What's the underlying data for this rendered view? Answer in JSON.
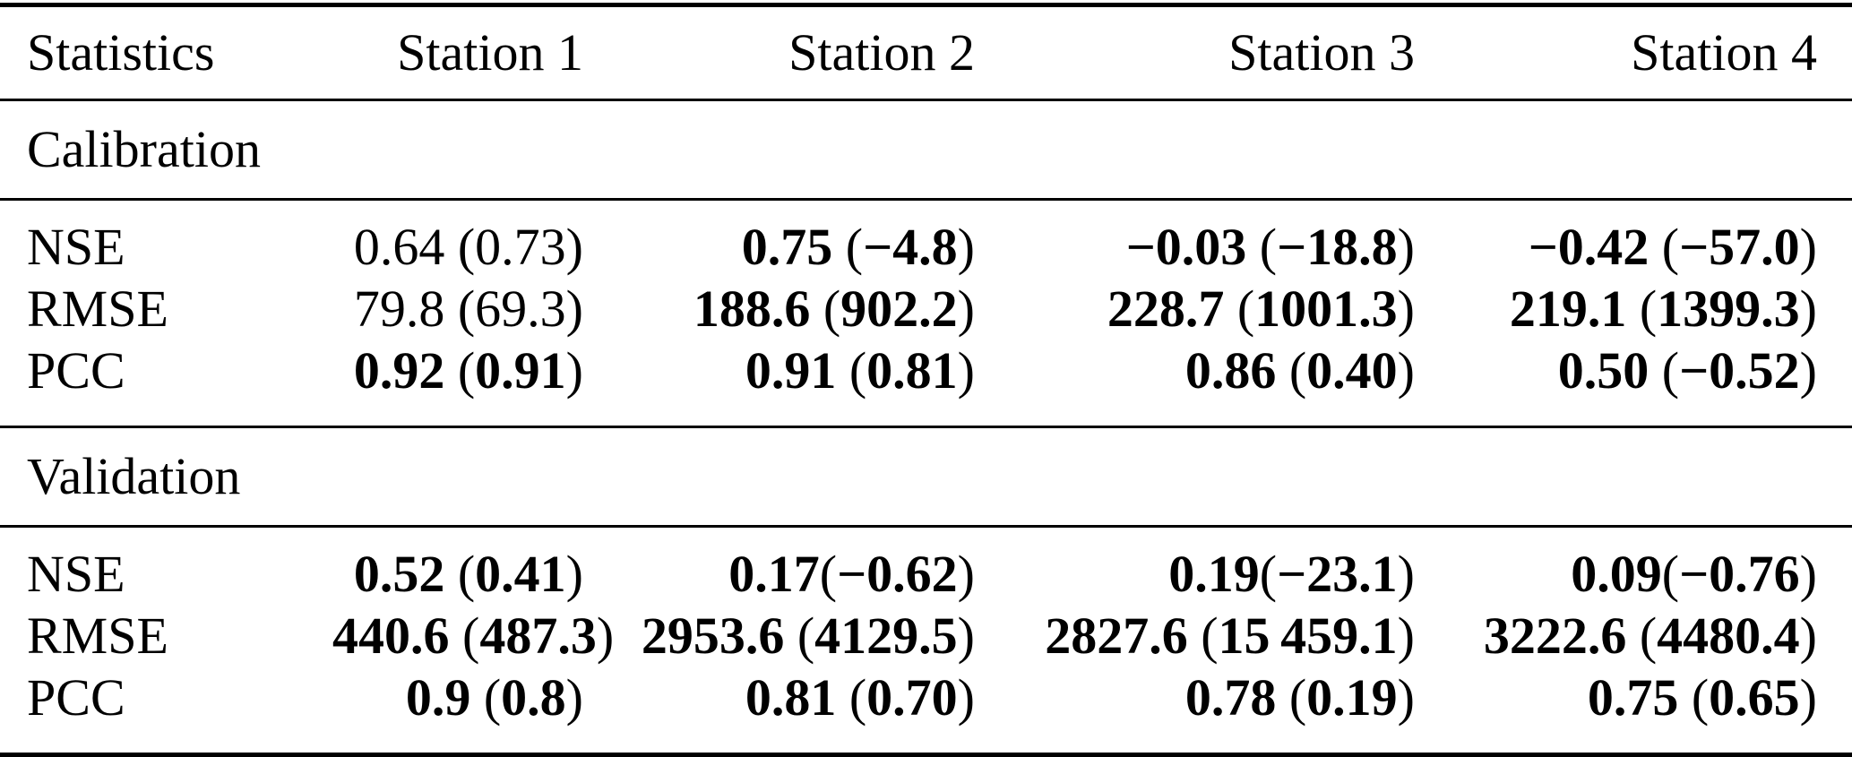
{
  "colors": {
    "background": "#ffffff",
    "text": "#000000",
    "rule": "#000000"
  },
  "table": {
    "columns": [
      "Statistics",
      "Station 1",
      "Station 2",
      "Station 3",
      "Station 4"
    ],
    "sections": [
      {
        "title": "Calibration",
        "rows": [
          {
            "label": "NSE",
            "cells": [
              {
                "text": "0.64 (0.73)",
                "bold": false
              },
              {
                "text": "0.75 (−4.8)",
                "bold": true
              },
              {
                "text": "−0.03 (−18.8)",
                "bold": true
              },
              {
                "text": "−0.42 (−57.0)",
                "bold": true
              }
            ]
          },
          {
            "label": "RMSE",
            "cells": [
              {
                "text": "79.8 (69.3)",
                "bold": false
              },
              {
                "text": "188.6 (902.2)",
                "bold": true
              },
              {
                "text": "228.7 (1001.3)",
                "bold": true
              },
              {
                "text": "219.1 (1399.3)",
                "bold": true
              }
            ]
          },
          {
            "label": "PCC",
            "cells": [
              {
                "text": "0.92 (0.91)",
                "bold": true
              },
              {
                "text": "0.91 (0.81)",
                "bold": true
              },
              {
                "text": "0.86 (0.40)",
                "bold": true
              },
              {
                "text": "0.50 (−0.52)",
                "bold": true
              }
            ]
          }
        ]
      },
      {
        "title": "Validation",
        "rows": [
          {
            "label": "NSE",
            "cells": [
              {
                "text": "0.52 (0.41)",
                "bold": true
              },
              {
                "text": "0.17(−0.62)",
                "bold": true
              },
              {
                "text": "0.19(−23.1)",
                "bold": true
              },
              {
                "text": "0.09(−0.76)",
                "bold": true
              }
            ]
          },
          {
            "label": "RMSE",
            "cells": [
              {
                "text": "440.6 (487.3)",
                "bold": true
              },
              {
                "text": "2953.6 (4129.5)",
                "bold": true
              },
              {
                "text": "2827.6 (15 459.1)",
                "bold": true
              },
              {
                "text": "3222.6 (4480.4)",
                "bold": true
              }
            ]
          },
          {
            "label": "PCC",
            "cells": [
              {
                "text": "0.9 (0.8)",
                "bold": true
              },
              {
                "text": "0.81 (0.70)",
                "bold": true
              },
              {
                "text": "0.78 (0.19)",
                "bold": true
              },
              {
                "text": "0.75 (0.65)",
                "bold": true
              }
            ]
          }
        ]
      }
    ]
  }
}
